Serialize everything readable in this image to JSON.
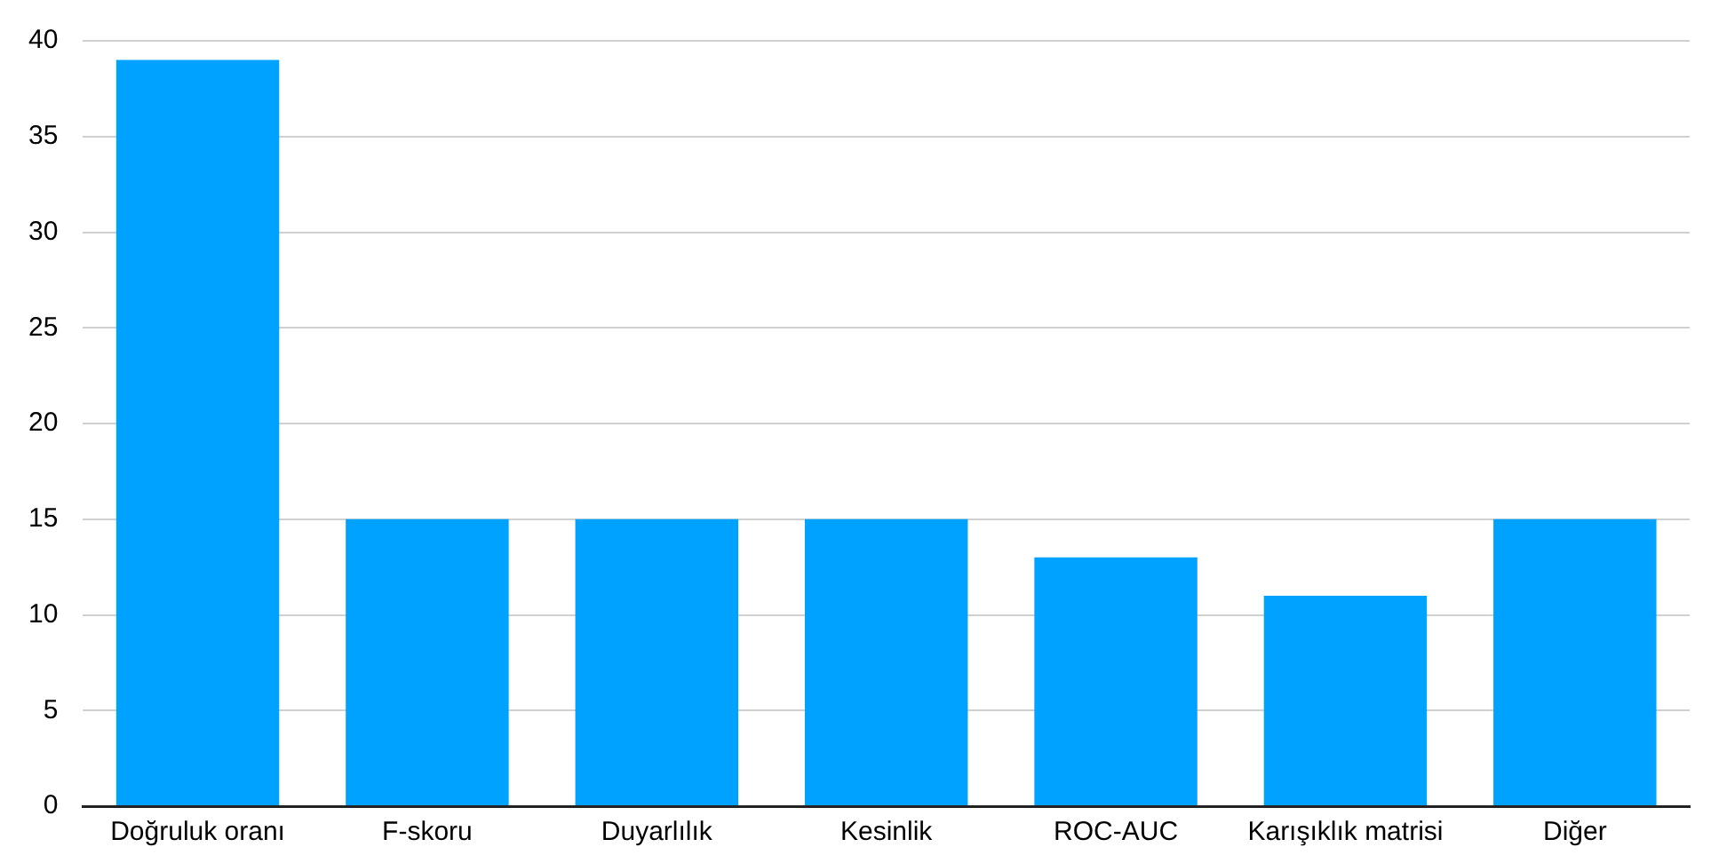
{
  "chart_data": {
    "type": "bar",
    "categories": [
      "Doğruluk oranı",
      "F-skoru",
      "Duyarlılık",
      "Kesinlik",
      "ROC-AUC",
      "Karışıklık matrisi",
      "Diğer"
    ],
    "values": [
      39,
      15,
      15,
      15,
      13,
      11,
      15
    ],
    "color": "#00a2ff",
    "ylim": [
      0,
      40
    ],
    "yticks": [
      0,
      5,
      10,
      15,
      20,
      25,
      30,
      35,
      40
    ],
    "grid": "y",
    "legend": false
  }
}
